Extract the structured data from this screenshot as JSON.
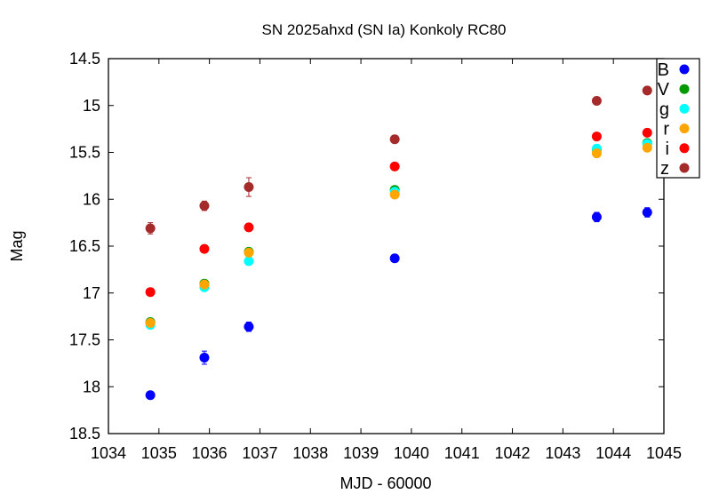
{
  "chart_data": {
    "type": "scatter",
    "title": "SN 2025ahxd (SN Ia) Konkoly RC80",
    "xlabel": "MJD - 60000",
    "ylabel": "Mag",
    "xlim": [
      1034,
      1045
    ],
    "ylim": [
      14.5,
      18.5
    ],
    "y_inverted": true,
    "x_ticks": [
      "1034",
      "1035",
      "1036",
      "1037",
      "1038",
      "1039",
      "1040",
      "1041",
      "1042",
      "1043",
      "1044",
      "1045"
    ],
    "y_ticks": [
      "14.5",
      "15",
      "15.5",
      "16",
      "16.5",
      "17",
      "17.5",
      "18",
      "18.5"
    ],
    "grid": false,
    "legend_placement": "top-right",
    "x": [
      1034.83,
      1035.9,
      1036.78,
      1039.67,
      1043.67,
      1044.67
    ],
    "series": [
      {
        "name": "B",
        "color": "#0000ff",
        "values": [
          18.09,
          17.69,
          17.36,
          16.63,
          16.19,
          16.14
        ],
        "yerr": [
          0.03,
          0.07,
          0.05,
          0.02,
          0.05,
          0.05
        ]
      },
      {
        "name": "V",
        "color": "#009900",
        "values": [
          17.31,
          16.9,
          16.56,
          15.9,
          15.47,
          15.4
        ],
        "yerr": [
          0.02,
          0.02,
          0.02,
          0.02,
          0.02,
          0.02
        ]
      },
      {
        "name": "g",
        "color": "#00ffff",
        "values": [
          17.34,
          16.94,
          16.66,
          15.92,
          15.46,
          15.41
        ],
        "yerr": [
          0.02,
          0.02,
          0.02,
          0.02,
          0.02,
          0.02
        ]
      },
      {
        "name": "r",
        "color": "#ffa500",
        "values": [
          17.32,
          16.91,
          16.57,
          15.95,
          15.51,
          15.45
        ],
        "yerr": [
          0.02,
          0.02,
          0.02,
          0.02,
          0.02,
          0.02
        ]
      },
      {
        "name": "i",
        "color": "#ff0000",
        "values": [
          16.99,
          16.53,
          16.3,
          15.65,
          15.33,
          15.29
        ],
        "yerr": [
          0.02,
          0.02,
          0.02,
          0.02,
          0.02,
          0.02
        ]
      },
      {
        "name": "z",
        "color": "#a52a2a",
        "values": [
          16.31,
          16.07,
          15.87,
          15.36,
          14.95,
          14.84
        ],
        "yerr": [
          0.06,
          0.05,
          0.1,
          0.04,
          0.02,
          0.02
        ]
      }
    ]
  }
}
